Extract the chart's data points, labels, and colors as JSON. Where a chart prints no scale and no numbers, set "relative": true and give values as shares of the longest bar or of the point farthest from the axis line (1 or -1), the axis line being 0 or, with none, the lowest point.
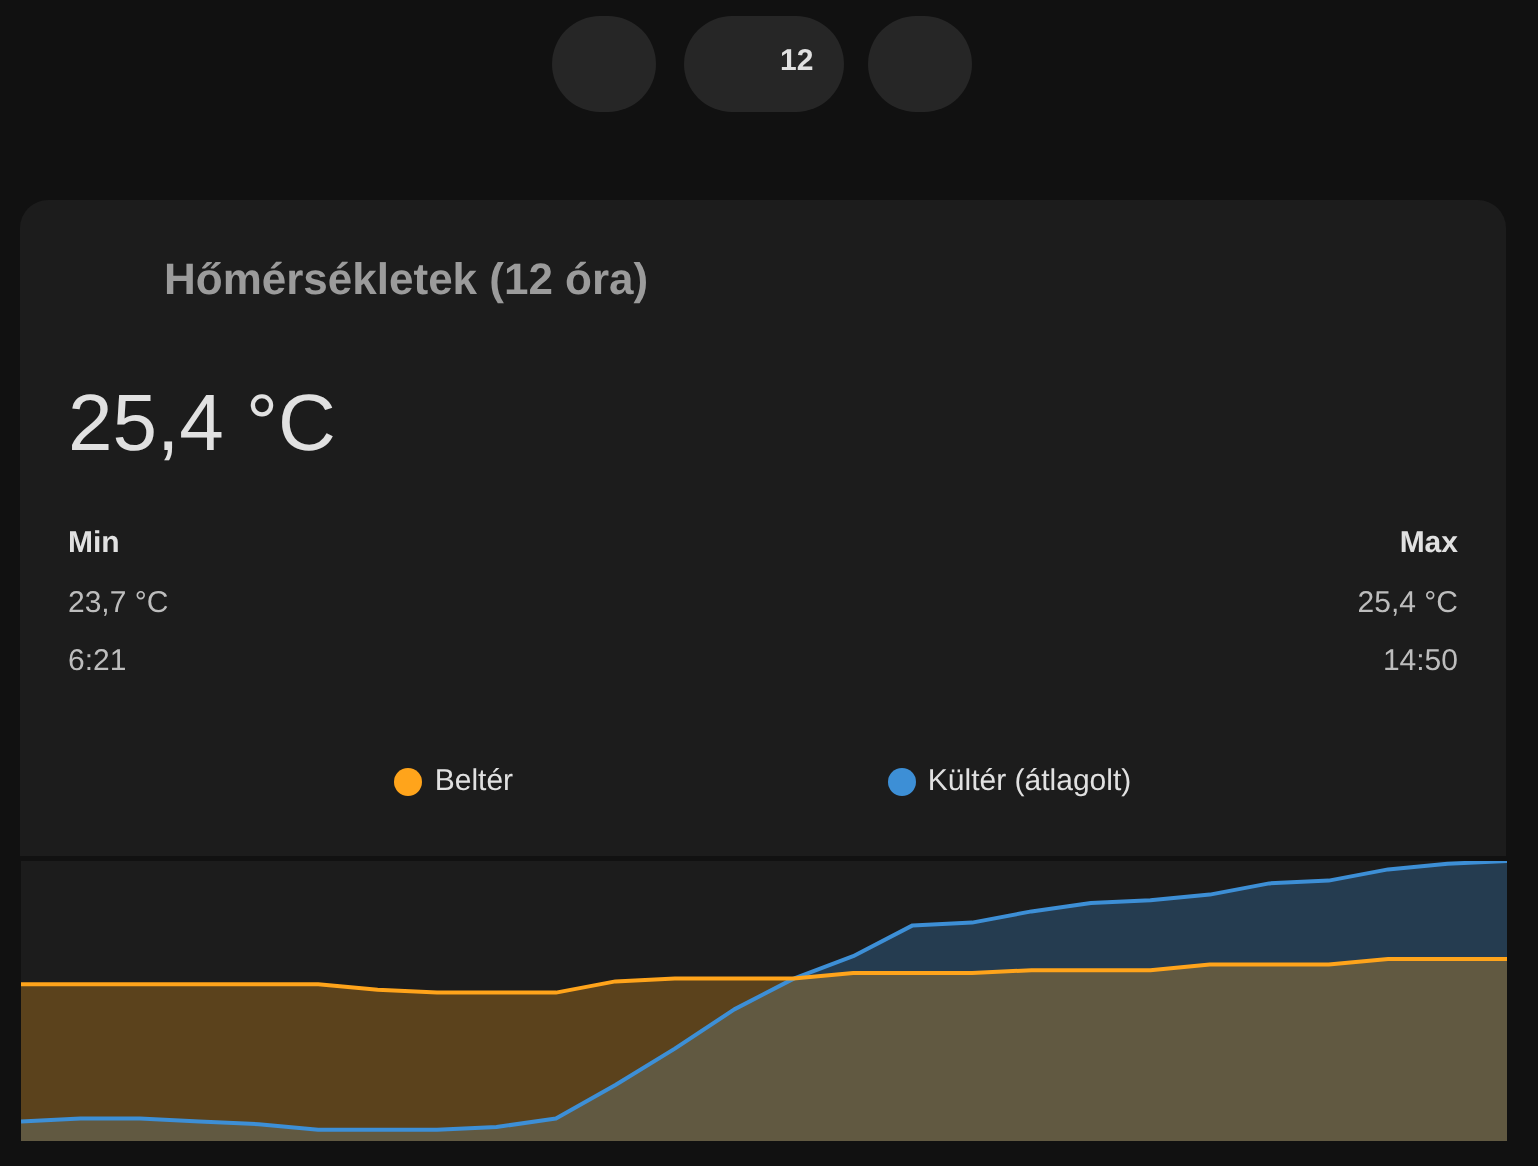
{
  "chart_data": {
    "type": "area",
    "title": "Hőmérsékletek (12 óra)",
    "relative": true,
    "legend": "top",
    "categories": [
      null,
      null,
      null,
      null,
      null,
      null,
      null,
      null,
      null,
      null,
      null,
      null,
      null,
      null,
      null,
      null,
      null,
      null,
      null,
      null,
      null,
      null,
      null,
      null,
      null,
      null
    ],
    "series": [
      {
        "name": "Beltér",
        "color": "#ffa41b",
        "values": [
          0.56,
          0.56,
          0.56,
          0.56,
          0.56,
          0.56,
          0.54,
          0.53,
          0.53,
          0.53,
          0.57,
          0.58,
          0.58,
          0.58,
          0.6,
          0.6,
          0.6,
          0.61,
          0.61,
          0.61,
          0.63,
          0.63,
          0.63,
          0.65,
          0.65,
          0.65
        ]
      },
      {
        "name": "Kültér (átlagolt)",
        "color": "#3d8fd6",
        "values": [
          0.07,
          0.08,
          0.08,
          0.07,
          0.06,
          0.04,
          0.04,
          0.04,
          0.05,
          0.08,
          0.2,
          0.33,
          0.47,
          0.58,
          0.66,
          0.77,
          0.78,
          0.82,
          0.85,
          0.86,
          0.88,
          0.92,
          0.93,
          0.97,
          0.99,
          1.0
        ]
      }
    ],
    "annotations": [
      "12",
      "25,4 °C",
      "Min",
      "23,7 °C",
      "6:21",
      "Max",
      "25,4 °C",
      "14:50"
    ]
  }
}
